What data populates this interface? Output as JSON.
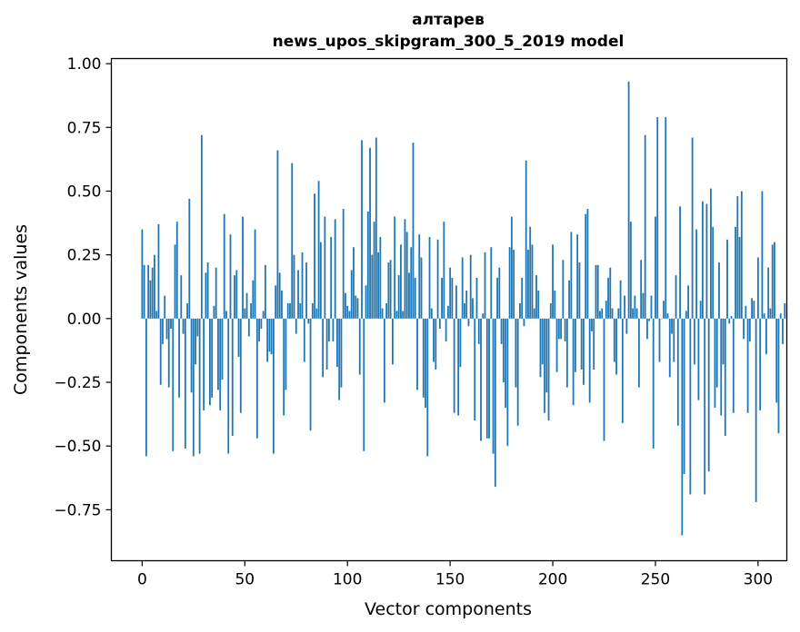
{
  "chart_data": {
    "type": "bar",
    "title_line1": "алтарев",
    "title_line2": "news_upos_skipgram_300_5_2019 model",
    "xlabel": "Vector components",
    "ylabel": "Components values",
    "xlim": [
      -15,
      314
    ],
    "ylim": [
      -0.95,
      1.02
    ],
    "xticks": [
      0,
      50,
      100,
      150,
      200,
      250,
      300
    ],
    "xtick_labels": [
      "0",
      "50",
      "100",
      "150",
      "200",
      "250",
      "300"
    ],
    "yticks": [
      1.0,
      0.75,
      0.5,
      0.25,
      0.0,
      -0.25,
      -0.5,
      -0.75
    ],
    "ytick_labels": [
      "1.00",
      "0.75",
      "0.50",
      "0.25",
      "0.00",
      "−0.25",
      "−0.50",
      "−0.75"
    ],
    "bar_color": "#1f77b4",
    "values": [
      0.35,
      0.21,
      -0.54,
      0.21,
      0.15,
      0.2,
      0.25,
      0.03,
      0.37,
      -0.26,
      -0.1,
      0.09,
      -0.08,
      -0.27,
      -0.04,
      -0.52,
      0.29,
      0.38,
      -0.31,
      0.17,
      -0.06,
      -0.51,
      0.06,
      0.47,
      -0.29,
      -0.54,
      -0.18,
      -0.07,
      -0.53,
      0.72,
      -0.36,
      0.18,
      0.22,
      -0.34,
      -0.31,
      0.05,
      0.2,
      -0.28,
      -0.36,
      -0.24,
      0.41,
      0.03,
      -0.53,
      0.33,
      -0.46,
      0.17,
      0.19,
      -0.15,
      -0.37,
      0.4,
      0.04,
      0.1,
      -0.07,
      0.06,
      0.15,
      0.35,
      -0.47,
      -0.09,
      -0.04,
      0.03,
      0.21,
      -0.17,
      -0.13,
      -0.14,
      -0.53,
      0.13,
      0.66,
      0.18,
      0.11,
      -0.38,
      -0.28,
      0.06,
      0.06,
      0.61,
      0.25,
      -0.06,
      0.19,
      0.06,
      0.26,
      -0.17,
      0.22,
      -0.02,
      -0.44,
      0.06,
      0.49,
      0.04,
      0.54,
      0.3,
      -0.23,
      0.4,
      -0.2,
      -0.09,
      0.32,
      -0.09,
      0.39,
      -0.19,
      -0.32,
      -0.27,
      0.43,
      0.1,
      0.05,
      0.03,
      0.19,
      0.28,
      0.09,
      0.08,
      -0.22,
      0.7,
      -0.52,
      0.13,
      0.42,
      0.67,
      0.25,
      0.38,
      0.71,
      0.26,
      0.32,
      0.04,
      -0.33,
      0.06,
      0.22,
      0.23,
      -0.18,
      0.4,
      0.03,
      0.17,
      0.29,
      0.03,
      0.39,
      0.34,
      0.18,
      0.28,
      0.69,
      0.16,
      -0.28,
      0.33,
      0.24,
      -0.31,
      -0.35,
      -0.54,
      0.32,
      0.04,
      -0.17,
      -0.2,
      0.31,
      -0.04,
      0.16,
      0.38,
      -0.09,
      0.05,
      0.2,
      0.16,
      -0.37,
      0.13,
      -0.38,
      -0.19,
      0.24,
      0.06,
      0.11,
      -0.03,
      0.25,
      0.08,
      -0.4,
      0.16,
      -0.1,
      -0.48,
      0.02,
      0.26,
      -0.47,
      -0.47,
      0.28,
      -0.53,
      -0.66,
      0.16,
      0.2,
      -0.1,
      -0.25,
      -0.35,
      -0.5,
      0.28,
      0.4,
      0.27,
      -0.27,
      -0.42,
      0.06,
      0.16,
      -0.03,
      0.62,
      0.27,
      0.36,
      0.29,
      0.04,
      0.17,
      0.11,
      -0.23,
      -0.18,
      -0.37,
      -0.29,
      -0.4,
      0.06,
      0.29,
      0.11,
      -0.21,
      -0.08,
      -0.08,
      0.23,
      -0.09,
      -0.27,
      0.15,
      0.34,
      -0.34,
      -0.21,
      0.33,
      0.22,
      -0.2,
      -0.26,
      0.41,
      0.43,
      -0.33,
      -0.05,
      -0.2,
      0.21,
      0.21,
      0.03,
      0.04,
      -0.48,
      0.07,
      0.16,
      0.2,
      0.04,
      -0.17,
      -0.22,
      0.04,
      0.15,
      -0.41,
      0.09,
      -0.06,
      0.93,
      0.38,
      0.04,
      0.09,
      0.04,
      -0.27,
      0.23,
      0.1,
      0.72,
      -0.08,
      -0.01,
      0.09,
      -0.51,
      0.4,
      0.79,
      -0.17,
      0.0,
      0.07,
      0.79,
      0.02,
      -0.23,
      -0.06,
      -0.17,
      0.17,
      -0.42,
      0.44,
      -0.85,
      -0.61,
      0.03,
      0.13,
      -0.69,
      0.71,
      -0.18,
      0.35,
      -0.32,
      0.07,
      0.46,
      -0.69,
      0.45,
      -0.6,
      0.51,
      0.36,
      -0.35,
      -0.27,
      0.22,
      -0.38,
      -0.18,
      -0.46,
      0.31,
      -0.02,
      0.01,
      -0.37,
      0.36,
      0.48,
      0.32,
      0.5,
      -0.08,
      0.05,
      -0.37,
      -0.09,
      0.08,
      0.07,
      -0.72,
      0.24,
      -0.36,
      0.5,
      0.02,
      -0.14,
      0.2,
      0.04,
      0.29,
      0.3,
      -0.33,
      -0.45,
      0.02,
      -0.1,
      0.06
    ]
  }
}
